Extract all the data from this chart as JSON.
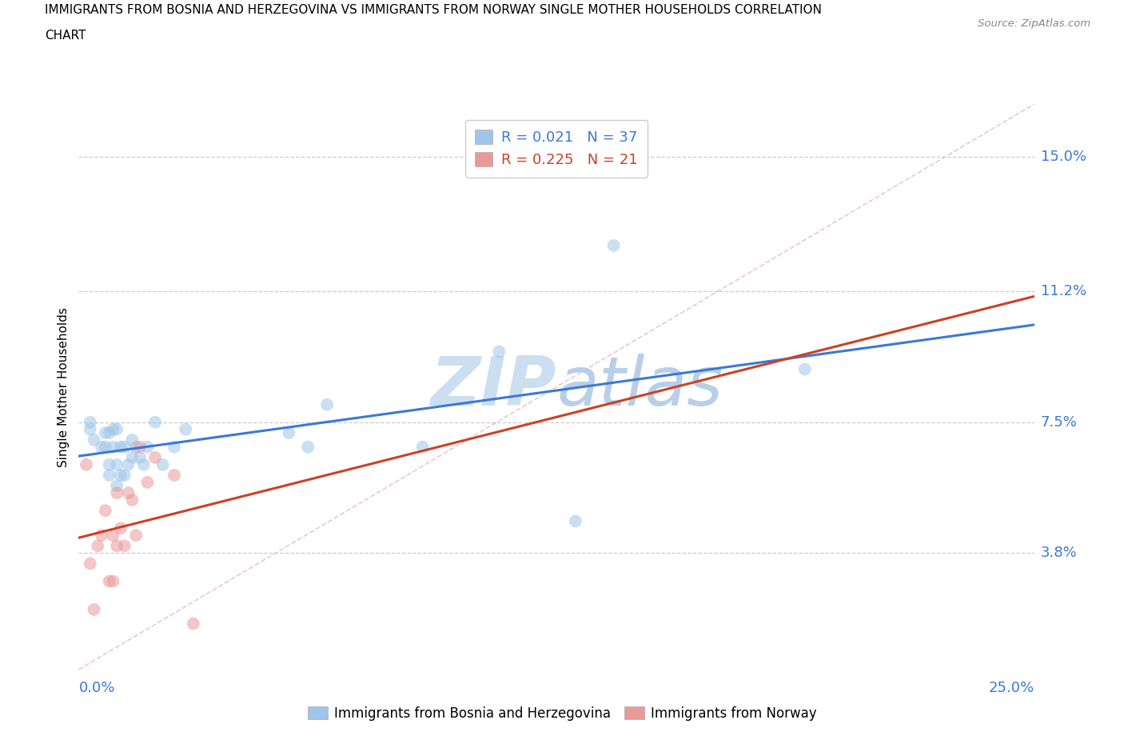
{
  "title_line1": "IMMIGRANTS FROM BOSNIA AND HERZEGOVINA VS IMMIGRANTS FROM NORWAY SINGLE MOTHER HOUSEHOLDS CORRELATION",
  "title_line2": "CHART",
  "source": "Source: ZipAtlas.com",
  "ylabel": "Single Mother Households",
  "ytick_labels": [
    "3.8%",
    "7.5%",
    "11.2%",
    "15.0%"
  ],
  "ytick_values": [
    0.038,
    0.075,
    0.112,
    0.15
  ],
  "xlim": [
    0.0,
    0.25
  ],
  "ylim": [
    0.005,
    0.165
  ],
  "color_blue": "#9fc5e8",
  "color_pink": "#ea9999",
  "color_blue_line": "#3c78d8",
  "color_pink_line": "#cc4125",
  "color_blue_text": "#3c78d8",
  "color_pink_text": "#cc4125",
  "color_grid": "#cccccc",
  "color_watermark": "#dce8f5",
  "watermark_text_color": "#c5d8ee",
  "legend1_label": "R = 0.021   N = 37",
  "legend2_label": "R = 0.225   N = 21",
  "bosnia_x": [
    0.003,
    0.003,
    0.004,
    0.006,
    0.007,
    0.007,
    0.008,
    0.008,
    0.008,
    0.009,
    0.009,
    0.01,
    0.01,
    0.01,
    0.011,
    0.011,
    0.012,
    0.012,
    0.013,
    0.014,
    0.014,
    0.015,
    0.016,
    0.017,
    0.018,
    0.02,
    0.022,
    0.025,
    0.028,
    0.055,
    0.06,
    0.065,
    0.09,
    0.11,
    0.13,
    0.14,
    0.19
  ],
  "bosnia_y": [
    0.073,
    0.075,
    0.07,
    0.068,
    0.068,
    0.072,
    0.06,
    0.063,
    0.072,
    0.068,
    0.073,
    0.057,
    0.063,
    0.073,
    0.06,
    0.068,
    0.06,
    0.068,
    0.063,
    0.065,
    0.07,
    0.068,
    0.065,
    0.063,
    0.068,
    0.075,
    0.063,
    0.068,
    0.073,
    0.072,
    0.068,
    0.08,
    0.068,
    0.095,
    0.047,
    0.125,
    0.09
  ],
  "norway_x": [
    0.002,
    0.003,
    0.004,
    0.005,
    0.006,
    0.007,
    0.008,
    0.009,
    0.009,
    0.01,
    0.01,
    0.011,
    0.012,
    0.013,
    0.014,
    0.015,
    0.016,
    0.018,
    0.02,
    0.025,
    0.03
  ],
  "norway_y": [
    0.063,
    0.035,
    0.022,
    0.04,
    0.043,
    0.05,
    0.03,
    0.03,
    0.043,
    0.04,
    0.055,
    0.045,
    0.04,
    0.055,
    0.053,
    0.043,
    0.068,
    0.058,
    0.065,
    0.06,
    0.018
  ],
  "diag_line_color": "#e8b4b8",
  "bottom_legend_label1": "Immigrants from Bosnia and Herzegovina",
  "bottom_legend_label2": "Immigrants from Norway"
}
